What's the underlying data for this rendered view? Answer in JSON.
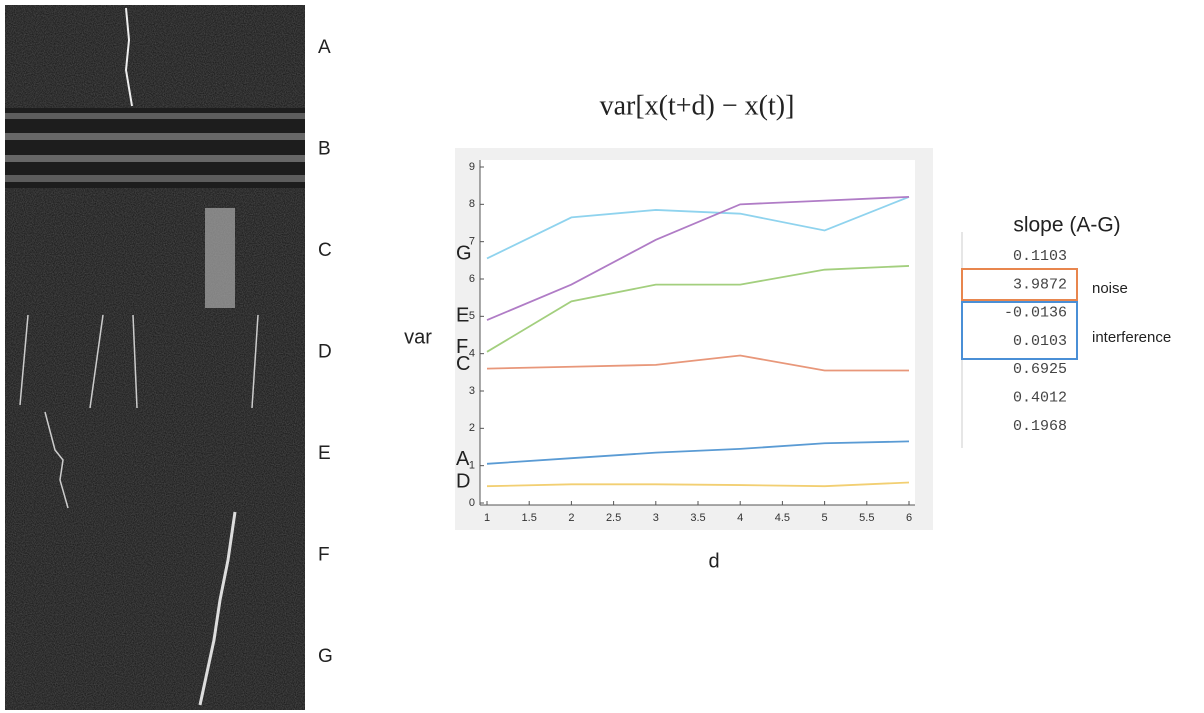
{
  "panel_labels": [
    "A",
    "B",
    "C",
    "D",
    "E",
    "F",
    "G"
  ],
  "chart_data": {
    "type": "line",
    "title": "var[x(t+d) − x(t)]",
    "x_label": "d",
    "y_label": "var",
    "x": [
      1,
      2,
      3,
      4,
      5,
      6
    ],
    "xlim": [
      1,
      6
    ],
    "xticks": [
      1,
      1.5,
      2,
      2.5,
      3,
      3.5,
      4,
      4.5,
      5,
      5.5,
      6
    ],
    "ylim": [
      0,
      9
    ],
    "yticks": [
      0,
      1,
      2,
      3,
      4,
      5,
      6,
      7,
      8,
      9
    ],
    "series": [
      {
        "name": "G",
        "color": "#8fd3ee",
        "values": [
          6.55,
          7.65,
          7.85,
          7.75,
          7.3,
          8.2
        ]
      },
      {
        "name": "E",
        "color": "#b07cc6",
        "values": [
          4.9,
          5.85,
          7.05,
          8.0,
          8.1,
          8.2
        ]
      },
      {
        "name": "F",
        "color": "#a3cf7e",
        "values": [
          4.05,
          5.4,
          5.85,
          5.85,
          6.25,
          6.35
        ]
      },
      {
        "name": "C",
        "color": "#e8977a",
        "values": [
          3.6,
          3.65,
          3.7,
          3.95,
          3.55,
          3.55
        ]
      },
      {
        "name": "A",
        "color": "#5a9bd4",
        "values": [
          1.05,
          1.2,
          1.35,
          1.45,
          1.6,
          1.65
        ]
      },
      {
        "name": "D",
        "color": "#f2cf72",
        "values": [
          0.45,
          0.5,
          0.5,
          0.48,
          0.45,
          0.55
        ]
      }
    ]
  },
  "slope_table": {
    "title": "slope (A-G)",
    "values": [
      "0.1103",
      "3.9872",
      "-0.0136",
      "0.0103",
      "0.6925",
      "0.4012",
      "0.1968"
    ],
    "notes": [
      "noise",
      "interference"
    ]
  }
}
